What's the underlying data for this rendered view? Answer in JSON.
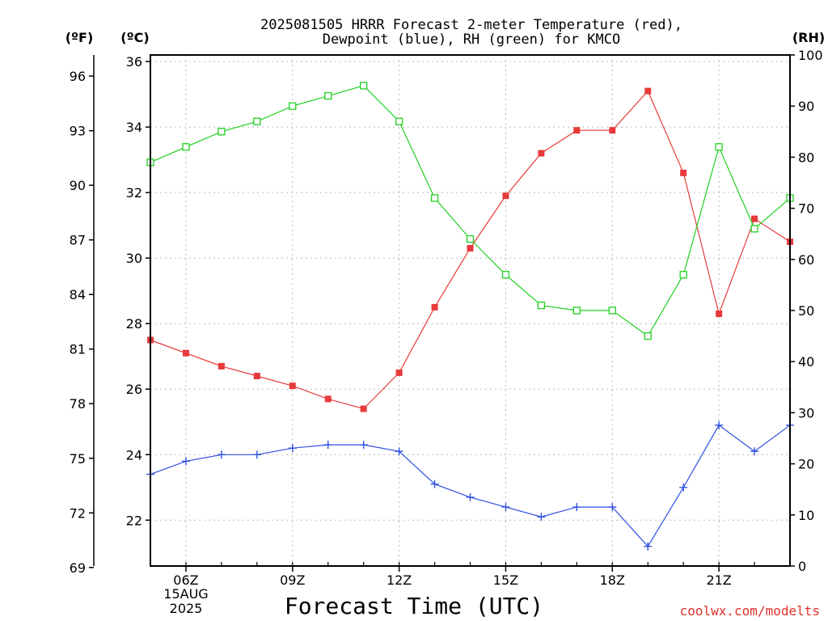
{
  "chart_data": {
    "type": "line",
    "title_line1": "2025081505 HRRR Forecast 2-meter Temperature (red),",
    "title_line2": "Dewpoint (blue), RH (green) for KMCO",
    "xlabel": "Forecast Time (UTC)",
    "unit_left_f": "(ºF)",
    "unit_left_c": "(ºC)",
    "unit_right": "(RH)",
    "credit": "coolwx.com/modelts",
    "date_line1": "15AUG",
    "date_line2": "2025",
    "x_hours": [
      5,
      6,
      7,
      8,
      9,
      10,
      11,
      12,
      13,
      14,
      15,
      16,
      17,
      18,
      19,
      20,
      21,
      22,
      23
    ],
    "x_ticks": [
      {
        "hour": 6,
        "label": "06Z"
      },
      {
        "hour": 9,
        "label": "09Z"
      },
      {
        "hour": 12,
        "label": "12Z"
      },
      {
        "hour": 15,
        "label": "15Z"
      },
      {
        "hour": 18,
        "label": "18Z"
      },
      {
        "hour": 21,
        "label": "21Z"
      }
    ],
    "c_axis": {
      "range": [
        20.6,
        36.2
      ],
      "ticks": [
        22,
        24,
        26,
        28,
        30,
        32,
        34,
        36
      ]
    },
    "f_axis": {
      "ticks": [
        69,
        72,
        75,
        78,
        81,
        84,
        87,
        90,
        93,
        96
      ]
    },
    "rh_axis": {
      "range": [
        0,
        100
      ],
      "ticks": [
        0,
        10,
        20,
        30,
        40,
        50,
        60,
        70,
        80,
        90,
        100
      ]
    },
    "grid": true,
    "series": [
      {
        "name": "Temperature",
        "color": "#e83a3a",
        "axis": "c",
        "marker": "filled-square",
        "values": [
          27.5,
          27.1,
          26.7,
          26.4,
          26.1,
          25.7,
          25.4,
          26.5,
          28.5,
          30.3,
          31.9,
          33.2,
          33.9,
          33.9,
          35.1,
          32.6,
          28.3,
          31.2,
          30.5
        ]
      },
      {
        "name": "Dewpoint",
        "color": "#3050e0",
        "axis": "c",
        "marker": "plus",
        "values": [
          23.4,
          23.8,
          24.0,
          24.0,
          24.2,
          24.3,
          24.3,
          24.1,
          23.1,
          22.7,
          22.4,
          22.1,
          22.4,
          22.4,
          21.2,
          23.0,
          24.9,
          24.1,
          24.9
        ]
      },
      {
        "name": "RH",
        "color": "#20d020",
        "axis": "rh",
        "marker": "open-square",
        "values": [
          79,
          82,
          85,
          87,
          90,
          92,
          94,
          87,
          72,
          64,
          57,
          51,
          50,
          50,
          45,
          57,
          82,
          66,
          72
        ]
      }
    ]
  }
}
